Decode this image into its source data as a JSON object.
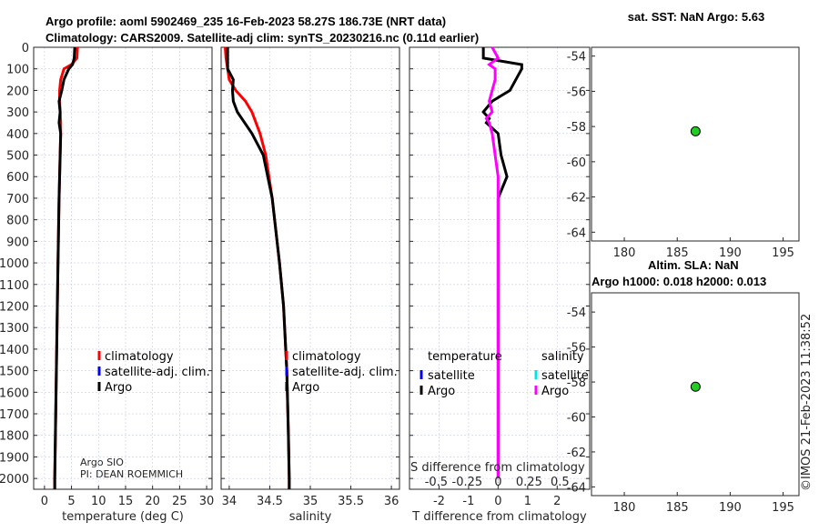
{
  "titles": {
    "line1": "Argo profile: aoml 5902469_235 16-Feb-2023 58.27S 186.73E (NRT data)",
    "line2": "Climatology: CARS2009. Satellite-adj clim: synTS_20230216.nc (0.11d earlier)",
    "sst": "sat. SST: NaN Argo: 5.63",
    "sla1": "Altim. SLA: NaN",
    "sla2": "Argo h1000: 0.018 h2000: 0.013",
    "watermark": "©IMOS 21-Feb-2023 11:38:52"
  },
  "info": {
    "institution": "Argo SIO",
    "pi": "PI: DEAN ROEMMICH"
  },
  "colors": {
    "climatology": "#ff0000",
    "satellite": "#0000ff",
    "argo": "#000000",
    "sal_sat": "#00e5e5",
    "sal_argo": "#ff00ff",
    "marker": "#22cc22"
  },
  "chart_data": [
    {
      "type": "line",
      "xlabel": "temperature (deg C)",
      "xlim": [
        -2,
        31
      ],
      "ylim": [
        2050,
        0
      ],
      "xticks": [
        "0",
        "5",
        "10",
        "15",
        "20",
        "25",
        "30"
      ],
      "xtickvals": [
        0,
        5,
        10,
        15,
        20,
        25,
        30
      ],
      "depth": [
        0,
        50,
        80,
        100,
        150,
        200,
        250,
        300,
        350,
        400,
        500,
        700,
        1000,
        1500,
        2000,
        2050
      ],
      "series": [
        {
          "name": "climatology",
          "values": [
            6.1,
            6.0,
            5.0,
            3.6,
            3.0,
            2.8,
            2.8,
            2.9,
            3.0,
            3.0,
            2.9,
            2.7,
            2.5,
            2.2,
            1.9,
            1.9
          ]
        },
        {
          "name": "Argo",
          "values": [
            5.6,
            5.5,
            5.2,
            4.5,
            3.6,
            3.2,
            2.7,
            2.9,
            2.7,
            3.0,
            2.9,
            2.7,
            2.5,
            2.2,
            1.9,
            1.9
          ]
        }
      ],
      "legend": [
        "climatology",
        "satellite-adj. clim.",
        "Argo"
      ]
    },
    {
      "type": "line",
      "xlabel": "salinity",
      "xlim": [
        33.9,
        36.1
      ],
      "ylim": [
        2050,
        0
      ],
      "xticks": [
        "34",
        "34.5",
        "35",
        "35.5",
        "36"
      ],
      "xtickvals": [
        34,
        34.5,
        35,
        35.5,
        36
      ],
      "depth": [
        0,
        50,
        100,
        150,
        200,
        250,
        300,
        400,
        500,
        700,
        1000,
        1200,
        1500,
        1800,
        2000,
        2050
      ],
      "series": [
        {
          "name": "climatology",
          "values": [
            33.95,
            33.96,
            33.98,
            34.0,
            34.08,
            34.2,
            34.28,
            34.38,
            34.45,
            34.53,
            34.62,
            34.67,
            34.71,
            34.73,
            34.74,
            34.74
          ]
        },
        {
          "name": "Argo",
          "values": [
            33.98,
            33.98,
            33.98,
            34.05,
            34.04,
            34.05,
            34.1,
            34.28,
            34.42,
            34.53,
            34.62,
            34.67,
            34.71,
            34.73,
            34.74,
            34.74
          ]
        }
      ],
      "legend": [
        "climatology",
        "satellite-adj. clim.",
        "Argo"
      ]
    },
    {
      "type": "line",
      "xlabel": "T difference from climatology",
      "xlabel2": "S difference from climatology",
      "xlim": [
        -3,
        3.1
      ],
      "ylim": [
        2050,
        0
      ],
      "xticks": [
        "-2",
        "-1",
        "0",
        "1",
        "2"
      ],
      "xtickvals": [
        -2,
        -1,
        0,
        1,
        2
      ],
      "xticks2": [
        "-0.5",
        "-0.25",
        "0",
        "0.25",
        "0.5"
      ],
      "xtickvals2": [
        -0.5,
        -0.25,
        0,
        0.25,
        0.5
      ],
      "depth": [
        0,
        50,
        80,
        100,
        150,
        200,
        250,
        300,
        330,
        350,
        400,
        500,
        600,
        700,
        1000,
        1500,
        2000
      ],
      "series": [
        {
          "name": "T Argo",
          "values": [
            -0.5,
            -0.5,
            0.8,
            0.8,
            0.6,
            0.4,
            -0.2,
            -0.5,
            -0.3,
            -0.4,
            0.0,
            0.1,
            0.3,
            0.0,
            0.0,
            0.0,
            0.0
          ]
        },
        {
          "name": "S Argo (scaled x4)",
          "values": [
            -0.2,
            0.0,
            -0.3,
            -0.1,
            -0.1,
            -0.2,
            -0.3,
            -0.2,
            -0.4,
            -0.3,
            -0.2,
            -0.1,
            0.0,
            0.0,
            0.0,
            0.0,
            0.0
          ]
        }
      ],
      "legend_t": [
        "temperature",
        "satellite",
        "Argo"
      ],
      "legend_s": [
        "salinity",
        "satellite",
        "Argo"
      ]
    },
    {
      "type": "scatter",
      "xlim": [
        176.9,
        196.5
      ],
      "ylim": [
        -64.5,
        -53.5
      ],
      "xticks": [
        "180",
        "185",
        "190",
        "195"
      ],
      "xtickvals": [
        180,
        185,
        190,
        195
      ],
      "yticks": [
        "-54",
        "-56",
        "-58",
        "-60",
        "-62",
        "-64"
      ],
      "ytickvals": [
        -54,
        -56,
        -58,
        -60,
        -62,
        -64
      ],
      "points": [
        {
          "x": 186.73,
          "y": -58.27
        }
      ]
    },
    {
      "type": "scatter",
      "xlim": [
        176.9,
        196.5
      ],
      "ylim": [
        -64.5,
        -52.9
      ],
      "xticks": [
        "180",
        "185",
        "190",
        "195"
      ],
      "xtickvals": [
        180,
        185,
        190,
        195
      ],
      "yticks": [
        "-54",
        "-56",
        "-58",
        "-60",
        "-62",
        "-64"
      ],
      "ytickvals": [
        -54,
        -56,
        -58,
        -60,
        -62,
        -64
      ],
      "points": [
        {
          "x": 186.73,
          "y": -58.27
        }
      ]
    }
  ],
  "depth_ticks": [
    "0",
    "100",
    "200",
    "300",
    "400",
    "500",
    "600",
    "700",
    "800",
    "900",
    "1000",
    "1100",
    "1200",
    "1300",
    "1400",
    "1500",
    "1600",
    "1700",
    "1800",
    "1900",
    "2000"
  ]
}
